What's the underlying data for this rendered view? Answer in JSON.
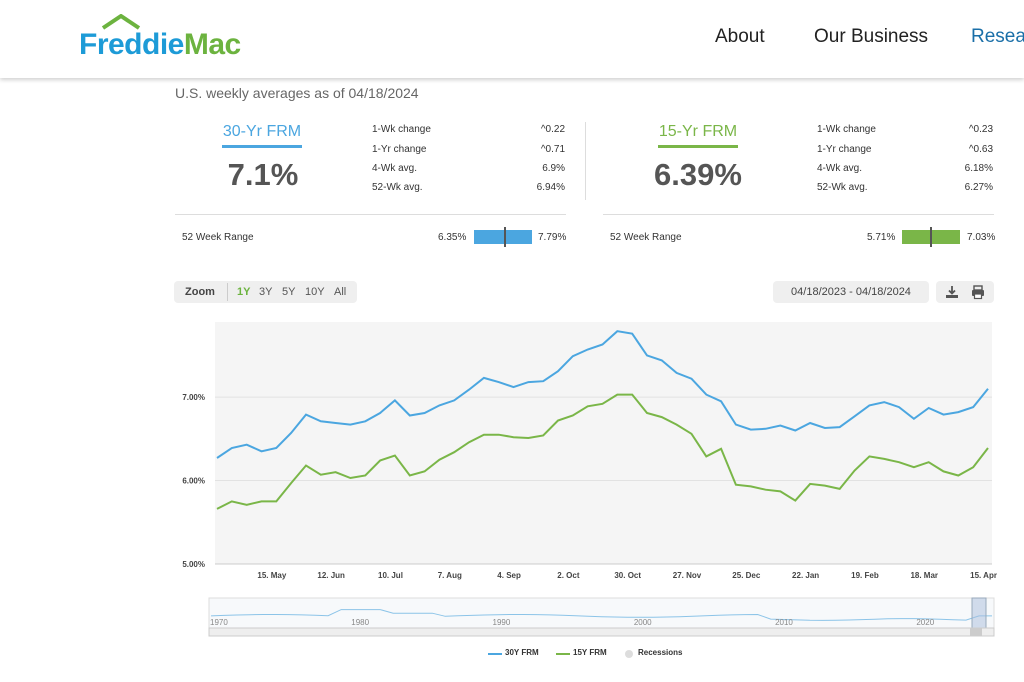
{
  "header": {
    "logo_fred": "Freddie",
    "logo_mac": "Mac",
    "nav": [
      "About",
      "Our Business",
      "Resear"
    ]
  },
  "asof": "U.S. weekly averages as of 04/18/2024",
  "rate30": {
    "title": "30-Yr FRM",
    "value": "7.1%",
    "stats": [
      {
        "label": "1-Wk change",
        "value": "^0.22"
      },
      {
        "label": "1-Yr change",
        "value": "^0.71"
      },
      {
        "label": "4-Wk avg.",
        "value": "6.9%"
      },
      {
        "label": "52-Wk avg.",
        "value": "6.94%"
      }
    ],
    "range_label": "52 Week Range",
    "range_low": "6.35%",
    "range_high": "7.79%",
    "range_pos": 0.53,
    "color": "#4ba6e0"
  },
  "rate15": {
    "title": "15-Yr FRM",
    "value": "6.39%",
    "stats": [
      {
        "label": "1-Wk change",
        "value": "^0.23"
      },
      {
        "label": "1-Yr change",
        "value": "^0.63"
      },
      {
        "label": "4-Wk avg.",
        "value": "6.18%"
      },
      {
        "label": "52-Wk avg.",
        "value": "6.27%"
      }
    ],
    "range_label": "52 Week Range",
    "range_low": "5.71%",
    "range_high": "7.03%",
    "range_pos": 0.5,
    "color": "#7ab648"
  },
  "toolbar": {
    "zoom_label": "Zoom",
    "zoom_options": [
      "1Y",
      "3Y",
      "5Y",
      "10Y",
      "All"
    ],
    "active_zoom": "1Y",
    "date_range": "04/18/2023 - 04/18/2024",
    "icons": [
      "download-icon",
      "print-icon"
    ]
  },
  "chart_data": {
    "type": "line",
    "x": [
      "2023-04-20",
      "2023-04-27",
      "2023-05-04",
      "2023-05-11",
      "2023-05-18",
      "2023-05-25",
      "2023-06-01",
      "2023-06-08",
      "2023-06-15",
      "2023-06-22",
      "2023-06-29",
      "2023-07-06",
      "2023-07-13",
      "2023-07-20",
      "2023-07-27",
      "2023-08-03",
      "2023-08-10",
      "2023-08-17",
      "2023-08-24",
      "2023-08-31",
      "2023-09-07",
      "2023-09-14",
      "2023-09-21",
      "2023-09-28",
      "2023-10-05",
      "2023-10-12",
      "2023-10-19",
      "2023-10-26",
      "2023-11-02",
      "2023-11-09",
      "2023-11-16",
      "2023-11-22",
      "2023-11-30",
      "2023-12-07",
      "2023-12-14",
      "2023-12-21",
      "2023-12-28",
      "2024-01-04",
      "2024-01-11",
      "2024-01-18",
      "2024-01-25",
      "2024-02-01",
      "2024-02-08",
      "2024-02-15",
      "2024-02-22",
      "2024-02-29",
      "2024-03-07",
      "2024-03-14",
      "2024-03-21",
      "2024-03-28",
      "2024-04-04",
      "2024-04-11",
      "2024-04-18"
    ],
    "series": [
      {
        "name": "30Y FRM",
        "color": "#4ba6e0",
        "values": [
          6.27,
          6.39,
          6.43,
          6.35,
          6.39,
          6.57,
          6.79,
          6.71,
          6.69,
          6.67,
          6.71,
          6.81,
          6.96,
          6.78,
          6.81,
          6.9,
          6.96,
          7.09,
          7.23,
          7.18,
          7.12,
          7.18,
          7.19,
          7.31,
          7.49,
          7.57,
          7.63,
          7.79,
          7.76,
          7.5,
          7.44,
          7.29,
          7.22,
          7.03,
          6.95,
          6.67,
          6.61,
          6.62,
          6.66,
          6.6,
          6.69,
          6.63,
          6.64,
          6.77,
          6.9,
          6.94,
          6.88,
          6.74,
          6.87,
          6.79,
          6.82,
          6.88,
          7.1
        ]
      },
      {
        "name": "15Y FRM",
        "color": "#7ab648",
        "values": [
          5.66,
          5.75,
          5.71,
          5.75,
          5.75,
          5.97,
          6.18,
          6.07,
          6.1,
          6.03,
          6.06,
          6.24,
          6.3,
          6.06,
          6.11,
          6.25,
          6.34,
          6.46,
          6.55,
          6.55,
          6.52,
          6.51,
          6.54,
          6.72,
          6.78,
          6.89,
          6.92,
          7.03,
          7.03,
          6.81,
          6.76,
          6.67,
          6.56,
          6.29,
          6.38,
          5.95,
          5.93,
          5.89,
          5.87,
          5.76,
          5.96,
          5.94,
          5.9,
          6.12,
          6.29,
          6.26,
          6.22,
          6.16,
          6.22,
          6.11,
          6.06,
          6.16,
          6.39
        ]
      }
    ],
    "y_ticks": [
      "5.00%",
      "6.00%",
      "7.00%"
    ],
    "y_tick_values": [
      5.0,
      6.0,
      7.0
    ],
    "ylim": [
      5.0,
      7.9
    ],
    "x_ticks": [
      "15. May",
      "12. Jun",
      "10. Jul",
      "7. Aug",
      "4. Sep",
      "2. Oct",
      "30. Oct",
      "27. Nov",
      "25. Dec",
      "22. Jan",
      "19. Feb",
      "18. Mar",
      "15. Apr"
    ],
    "x_tick_index": [
      3.7,
      7.7,
      11.7,
      15.7,
      19.7,
      23.7,
      27.7,
      31.7,
      35.7,
      39.7,
      43.7,
      47.7,
      51.7
    ],
    "navigator_ticks": [
      "1970",
      "1980",
      "1990",
      "2000",
      "2010",
      "2020"
    ],
    "legend": [
      "30Y FRM",
      "15Y FRM",
      "Recessions"
    ],
    "recessions_color": "#dddddd"
  }
}
